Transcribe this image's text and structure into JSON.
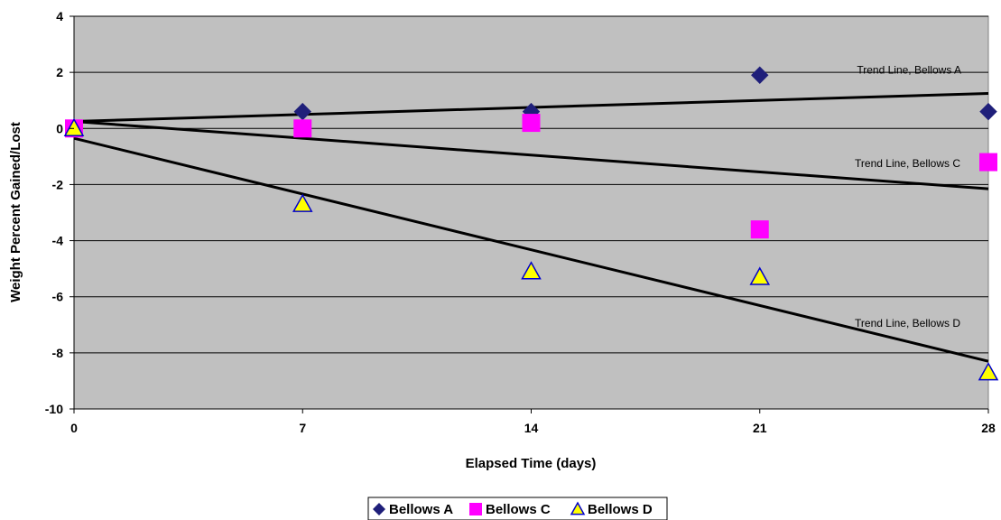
{
  "chart_data": {
    "type": "scatter",
    "title": "",
    "xlabel": "Elapsed Time (days)",
    "ylabel": "Weight Percent Gained/Lost",
    "xlim": [
      0,
      28
    ],
    "ylim": [
      -10,
      4
    ],
    "x_ticks": [
      "0",
      "7",
      "14",
      "21",
      "28"
    ],
    "y_ticks": [
      "4",
      "2",
      "0",
      "-2",
      "-4",
      "-6",
      "-8",
      "-10"
    ],
    "grid": true,
    "plot_background": "#C0C0C0",
    "legend_position": "bottom-center",
    "series": [
      {
        "name": "Bellows A",
        "marker": "diamond",
        "color": "#1F1F7A",
        "x": [
          0,
          7,
          14,
          21,
          28
        ],
        "y": [
          0.0,
          0.6,
          0.6,
          1.9,
          0.6
        ]
      },
      {
        "name": "Bellows C",
        "marker": "square",
        "color": "#FF00FF",
        "x": [
          0,
          7,
          14,
          21,
          28
        ],
        "y": [
          0.0,
          0.0,
          0.2,
          -3.6,
          -1.2
        ]
      },
      {
        "name": "Bellows D",
        "marker": "triangle",
        "color": "#FFFF00",
        "stroke": "#0000CC",
        "x": [
          0,
          7,
          14,
          21,
          28
        ],
        "y": [
          0.0,
          -2.7,
          -5.1,
          -5.3,
          -8.7
        ]
      }
    ],
    "trend_lines": [
      {
        "label": "Trend Line, Bellows A",
        "x": [
          0,
          28
        ],
        "y": [
          0.25,
          1.25
        ]
      },
      {
        "label": "Trend Line, Bellows C",
        "x": [
          0,
          28
        ],
        "y": [
          0.25,
          -2.15
        ]
      },
      {
        "label": "Trend Line, Bellows D",
        "x": [
          0,
          28
        ],
        "y": [
          -0.35,
          -8.3
        ]
      }
    ]
  }
}
